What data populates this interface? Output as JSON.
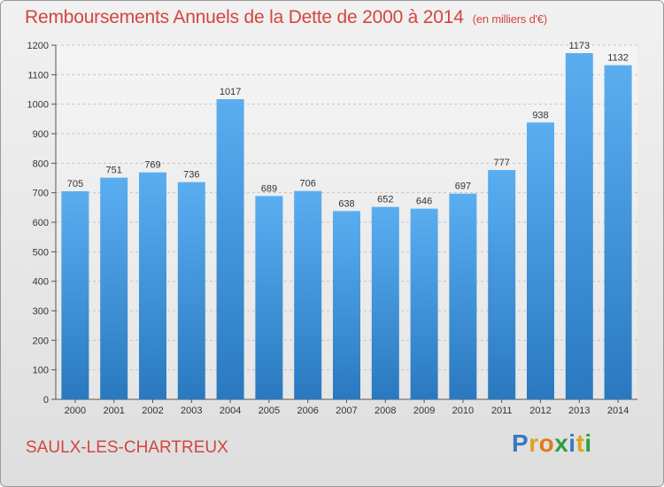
{
  "title": "Remboursements Annuels de la Dette de 2000 à 2014",
  "subtitle": "(en milliers d'€)",
  "commune": "SAULX-LES-CHARTREUX",
  "brand": {
    "letters": [
      "P",
      "r",
      "o",
      "x",
      "i",
      "t",
      "i"
    ],
    "colors": [
      "#3b78c3",
      "#e0a21a",
      "#e07a1a",
      "#2e9e3f",
      "#3b78c3",
      "#e0a21a",
      "#2e9e3f"
    ]
  },
  "colors": {
    "bar_top": "#5aaef0",
    "bar_bottom": "#2a79c0",
    "title": "#d2463f"
  },
  "chart_data": {
    "type": "bar",
    "categories": [
      "2000",
      "2001",
      "2002",
      "2003",
      "2004",
      "2005",
      "2006",
      "2007",
      "2008",
      "2009",
      "2010",
      "2011",
      "2012",
      "2013",
      "2014"
    ],
    "values": [
      705,
      751,
      769,
      736,
      1017,
      689,
      706,
      638,
      652,
      646,
      697,
      777,
      938,
      1173,
      1132
    ],
    "yticks": [
      0,
      100,
      200,
      300,
      400,
      500,
      600,
      700,
      800,
      900,
      1000,
      1100,
      1200
    ],
    "ylim": [
      0,
      1200
    ],
    "grid": true,
    "xlabel": "",
    "ylabel": ""
  }
}
